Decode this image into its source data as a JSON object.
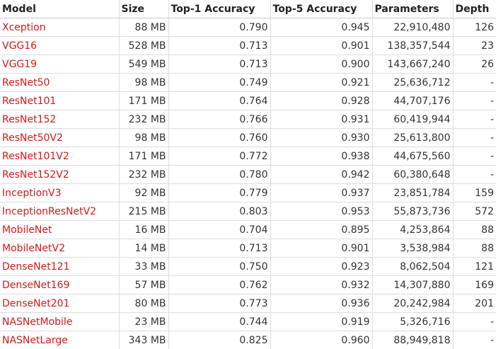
{
  "table": {
    "headers": [
      "Model",
      "Size",
      "Top-1 Accuracy",
      "Top-5 Accuracy",
      "Parameters",
      "Depth"
    ],
    "rows": [
      [
        "Xception",
        "88 MB",
        "0.790",
        "0.945",
        "22,910,480",
        "126"
      ],
      [
        "VGG16",
        "528 MB",
        "0.713",
        "0.901",
        "138,357,544",
        "23"
      ],
      [
        "VGG19",
        "549 MB",
        "0.713",
        "0.900",
        "143,667,240",
        "26"
      ],
      [
        "ResNet50",
        "98 MB",
        "0.749",
        "0.921",
        "25,636,712",
        "-"
      ],
      [
        "ResNet101",
        "171 MB",
        "0.764",
        "0.928",
        "44,707,176",
        "-"
      ],
      [
        "ResNet152",
        "232 MB",
        "0.766",
        "0.931",
        "60,419,944",
        "-"
      ],
      [
        "ResNet50V2",
        "98 MB",
        "0.760",
        "0.930",
        "25,613,800",
        "-"
      ],
      [
        "ResNet101V2",
        "171 MB",
        "0.772",
        "0.938",
        "44,675,560",
        "-"
      ],
      [
        "ResNet152V2",
        "232 MB",
        "0.780",
        "0.942",
        "60,380,648",
        "-"
      ],
      [
        "InceptionV3",
        "92 MB",
        "0.779",
        "0.937",
        "23,851,784",
        "159"
      ],
      [
        "InceptionResNetV2",
        "215 MB",
        "0.803",
        "0.953",
        "55,873,736",
        "572"
      ],
      [
        "MobileNet",
        "16 MB",
        "0.704",
        "0.895",
        "4,253,864",
        "88"
      ],
      [
        "MobileNetV2",
        "14 MB",
        "0.713",
        "0.901",
        "3,538,984",
        "88"
      ],
      [
        "DenseNet121",
        "33 MB",
        "0.750",
        "0.923",
        "8,062,504",
        "121"
      ],
      [
        "DenseNet169",
        "57 MB",
        "0.762",
        "0.932",
        "14,307,880",
        "169"
      ],
      [
        "DenseNet201",
        "80 MB",
        "0.773",
        "0.936",
        "20,242,984",
        "201"
      ],
      [
        "NASNetMobile",
        "23 MB",
        "0.744",
        "0.919",
        "5,326,716",
        "-"
      ],
      [
        "NASNetLarge",
        "343 MB",
        "0.825",
        "0.960",
        "88,949,818",
        "-"
      ]
    ]
  },
  "colors": {
    "link": "#d11a1a",
    "text": "#333333",
    "border": "#dddddd"
  }
}
